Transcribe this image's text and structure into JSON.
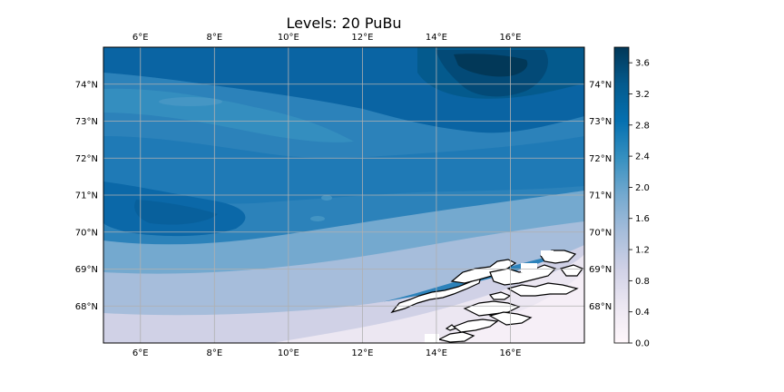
{
  "title": "Levels: 20 PuBu",
  "map": {
    "lon_range": [
      5,
      18
    ],
    "lat_range": [
      67,
      75
    ],
    "lon_ticks": [
      6,
      8,
      10,
      12,
      14,
      16
    ],
    "lat_ticks": [
      68,
      69,
      70,
      71,
      72,
      73,
      74
    ],
    "lon_tick_labels": [
      "6°E",
      "8°E",
      "10°E",
      "12°E",
      "14°E",
      "16°E"
    ],
    "lat_tick_labels": [
      "68°N",
      "69°N",
      "70°N",
      "71°N",
      "72°N",
      "73°N",
      "74°N"
    ],
    "gridlines": true,
    "coastline": "Norway (Lofoten / Vesterålen)",
    "field_description": "filled contour field, 20 levels, PuBu colormap"
  },
  "colorbar": {
    "cmap": "PuBu",
    "range": [
      0.0,
      3.8
    ],
    "ticks": [
      0.0,
      0.4,
      0.8,
      1.2,
      1.6,
      2.0,
      2.4,
      2.8,
      3.2,
      3.6
    ],
    "tick_labels": [
      "0.0",
      "0.4",
      "0.8",
      "1.2",
      "1.6",
      "2.0",
      "2.4",
      "2.8",
      "3.2",
      "3.6"
    ],
    "colors": [
      "#fff7fb",
      "#ece7f2",
      "#d0d1e6",
      "#a6bddb",
      "#74a9cf",
      "#3690c0",
      "#0570b0",
      "#045a8d",
      "#023858"
    ]
  }
}
